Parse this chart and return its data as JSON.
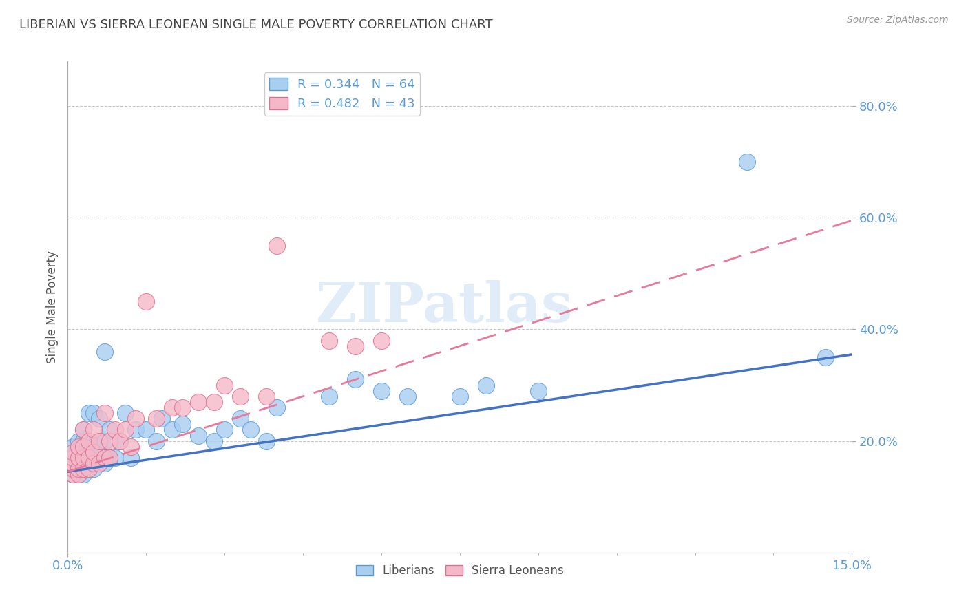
{
  "title": "LIBERIAN VS SIERRA LEONEAN SINGLE MALE POVERTY CORRELATION CHART",
  "source": "Source: ZipAtlas.com",
  "ylabel": "Single Male Poverty",
  "xlim": [
    0.0,
    0.15
  ],
  "ylim": [
    0.0,
    0.88
  ],
  "ytick_vals": [
    0.2,
    0.4,
    0.6,
    0.8
  ],
  "ytick_labels": [
    "20.0%",
    "40.0%",
    "60.0%",
    "80.0%"
  ],
  "xtick_vals": [
    0.0,
    0.15
  ],
  "xtick_labels": [
    "0.0%",
    "15.0%"
  ],
  "liberian_x": [
    0.001,
    0.001,
    0.001,
    0.001,
    0.001,
    0.001,
    0.001,
    0.001,
    0.002,
    0.002,
    0.002,
    0.002,
    0.002,
    0.002,
    0.002,
    0.003,
    0.003,
    0.003,
    0.003,
    0.003,
    0.003,
    0.004,
    0.004,
    0.004,
    0.004,
    0.004,
    0.005,
    0.005,
    0.005,
    0.005,
    0.006,
    0.006,
    0.006,
    0.007,
    0.007,
    0.007,
    0.008,
    0.008,
    0.009,
    0.01,
    0.011,
    0.012,
    0.013,
    0.015,
    0.017,
    0.018,
    0.02,
    0.022,
    0.025,
    0.028,
    0.03,
    0.033,
    0.035,
    0.038,
    0.04,
    0.05,
    0.055,
    0.06,
    0.065,
    0.075,
    0.08,
    0.09,
    0.13,
    0.145
  ],
  "liberian_y": [
    0.14,
    0.15,
    0.15,
    0.16,
    0.16,
    0.17,
    0.18,
    0.19,
    0.14,
    0.15,
    0.16,
    0.17,
    0.18,
    0.19,
    0.2,
    0.14,
    0.15,
    0.17,
    0.18,
    0.2,
    0.22,
    0.15,
    0.16,
    0.18,
    0.2,
    0.25,
    0.15,
    0.17,
    0.19,
    0.25,
    0.16,
    0.19,
    0.24,
    0.16,
    0.2,
    0.36,
    0.17,
    0.22,
    0.17,
    0.2,
    0.25,
    0.17,
    0.22,
    0.22,
    0.2,
    0.24,
    0.22,
    0.23,
    0.21,
    0.2,
    0.22,
    0.24,
    0.22,
    0.2,
    0.26,
    0.28,
    0.31,
    0.29,
    0.28,
    0.28,
    0.3,
    0.29,
    0.7,
    0.35
  ],
  "sierra_x": [
    0.001,
    0.001,
    0.001,
    0.001,
    0.001,
    0.002,
    0.002,
    0.002,
    0.002,
    0.003,
    0.003,
    0.003,
    0.003,
    0.004,
    0.004,
    0.004,
    0.005,
    0.005,
    0.005,
    0.006,
    0.006,
    0.007,
    0.007,
    0.008,
    0.008,
    0.009,
    0.01,
    0.011,
    0.012,
    0.013,
    0.015,
    0.017,
    0.02,
    0.022,
    0.025,
    0.028,
    0.03,
    0.033,
    0.038,
    0.04,
    0.05,
    0.055,
    0.06
  ],
  "sierra_y": [
    0.14,
    0.15,
    0.16,
    0.17,
    0.18,
    0.14,
    0.15,
    0.17,
    0.19,
    0.15,
    0.17,
    0.19,
    0.22,
    0.15,
    0.17,
    0.2,
    0.16,
    0.18,
    0.22,
    0.16,
    0.2,
    0.17,
    0.25,
    0.17,
    0.2,
    0.22,
    0.2,
    0.22,
    0.19,
    0.24,
    0.45,
    0.24,
    0.26,
    0.26,
    0.27,
    0.27,
    0.3,
    0.28,
    0.28,
    0.55,
    0.38,
    0.37,
    0.38
  ],
  "liberian_color": "#A8CEF0",
  "liberian_edge_color": "#5B9BD5",
  "sierra_color": "#F4B8C8",
  "sierra_edge_color": "#E07090",
  "liberian_line_color": "#4472C4",
  "sierra_line_color": "#E8799A",
  "R_liberian": 0.344,
  "N_liberian": 64,
  "R_sierra": 0.482,
  "N_sierra": 43,
  "background_color": "#FFFFFF",
  "grid_color": "#C8C8C8",
  "title_color": "#444444",
  "axis_label_color": "#555555",
  "tick_color": "#5B9BD5",
  "watermark_text": "ZIPatlas",
  "watermark_color": "#E0ECF8"
}
